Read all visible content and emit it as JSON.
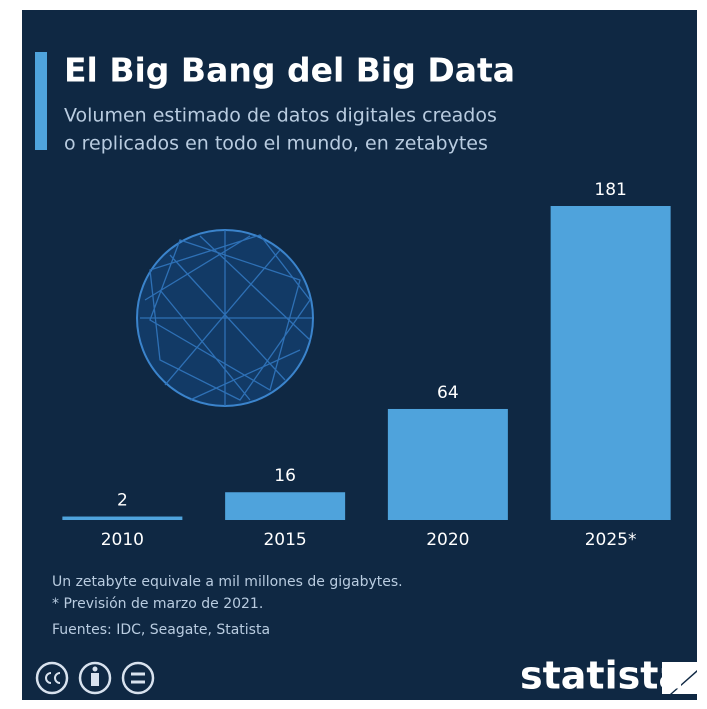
{
  "chart_data": {
    "type": "bar",
    "title": "El Big Bang del Big Data",
    "subtitle": [
      "Volumen estimado de datos digitales creados",
      "o replicados en todo el mundo, en zetabytes"
    ],
    "categories": [
      "2010",
      "2015",
      "2020",
      "2025*"
    ],
    "values": [
      2,
      16,
      64,
      181
    ],
    "color": "#4fa3dc",
    "notes": [
      "Un zetabyte equivale a mil millones de gigabytes.",
      "* Previsión de marzo de 2021."
    ],
    "source": "Fuentes: IDC, Seagate, Statista"
  },
  "footer": {
    "brand": "statista"
  }
}
